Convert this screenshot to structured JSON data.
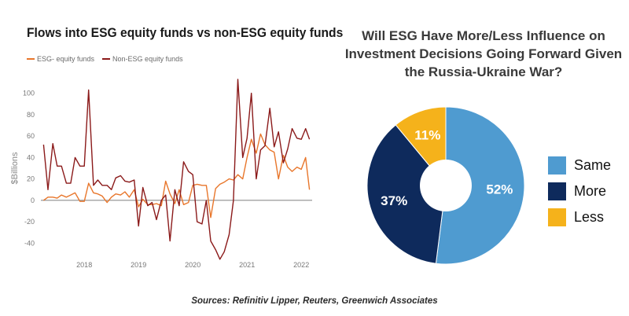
{
  "left": {
    "title": "Flows into ESG equity funds vs non-ESG equity funds",
    "legend": [
      {
        "label": "ESG- equity funds",
        "color": "#e8762b"
      },
      {
        "label": "Non-ESG equity funds",
        "color": "#8b1a1a"
      }
    ]
  },
  "right": {
    "title": "Will ESG Have More/Less Influence on Investment Decisions Going Forward Given the Russia-Ukraine War?"
  },
  "sources": "Sources: Refinitiv Lipper, Reuters, Greenwich Associates",
  "chart_data": [
    {
      "type": "line",
      "title": "Flows into ESG equity funds vs non-ESG equity funds",
      "ylabel": "$Billions",
      "ylim": [
        -50,
        110
      ],
      "yticks": [
        -40,
        -20,
        0,
        20,
        40,
        60,
        80,
        100
      ],
      "xticks": [
        "2018",
        "2019",
        "2020",
        "2021",
        "2022"
      ],
      "xlim": [
        2017.25,
        2022.25
      ],
      "grid": false,
      "legend_position": "top-left",
      "series": [
        {
          "name": "ESG- equity funds",
          "color": "#e8762b",
          "x": [
            2017.3,
            2017.38,
            2017.47,
            2017.55,
            2017.63,
            2017.72,
            2017.8,
            2017.88,
            2017.97,
            2018.05,
            2018.13,
            2018.22,
            2018.3,
            2018.38,
            2018.47,
            2018.55,
            2018.63,
            2018.72,
            2018.8,
            2018.88,
            2018.97,
            2019.05,
            2019.13,
            2019.22,
            2019.3,
            2019.38,
            2019.47,
            2019.55,
            2019.63,
            2019.72,
            2019.8,
            2019.88,
            2019.97,
            2020.05,
            2020.13,
            2020.22,
            2020.3,
            2020.38,
            2020.47,
            2020.55,
            2020.63,
            2020.72,
            2020.8,
            2020.88,
            2020.97,
            2021.05,
            2021.13,
            2021.22,
            2021.3,
            2021.38,
            2021.47,
            2021.55,
            2021.63,
            2021.72,
            2021.8,
            2021.88,
            2021.97,
            2022.05,
            2022.13,
            2022.2
          ],
          "y": [
            0,
            3,
            3,
            2,
            5,
            3,
            5,
            7,
            -1,
            -1,
            16,
            7,
            6,
            4,
            -2,
            3,
            6,
            5,
            8,
            3,
            10,
            -6,
            1,
            -4,
            -4,
            -3,
            -5,
            18,
            6,
            -3,
            10,
            -4,
            -2,
            14,
            15,
            14,
            14,
            -16,
            11,
            15,
            17,
            20,
            19,
            24,
            20,
            40,
            57,
            44,
            62,
            52,
            47,
            45,
            20,
            42,
            31,
            27,
            31,
            29,
            40,
            10
          ]
        },
        {
          "name": "Non-ESG equity funds",
          "color": "#8b1a1a",
          "x": [
            2017.3,
            2017.38,
            2017.47,
            2017.55,
            2017.63,
            2017.72,
            2017.8,
            2017.88,
            2017.97,
            2018.05,
            2018.13,
            2018.22,
            2018.3,
            2018.38,
            2018.47,
            2018.55,
            2018.63,
            2018.72,
            2018.8,
            2018.88,
            2018.97,
            2019.05,
            2019.13,
            2019.22,
            2019.3,
            2019.38,
            2019.47,
            2019.55,
            2019.63,
            2019.72,
            2019.8,
            2019.88,
            2019.97,
            2020.05,
            2020.13,
            2020.22,
            2020.3,
            2020.38,
            2020.47,
            2020.55,
            2020.63,
            2020.72,
            2020.8,
            2020.88,
            2020.97,
            2021.05,
            2021.13,
            2021.22,
            2021.3,
            2021.38,
            2021.47,
            2021.55,
            2021.63,
            2021.72,
            2021.8,
            2021.88,
            2021.97,
            2022.05,
            2022.13,
            2022.2
          ],
          "y": [
            52,
            10,
            53,
            32,
            32,
            16,
            16,
            40,
            32,
            32,
            103,
            14,
            19,
            14,
            14,
            10,
            21,
            23,
            18,
            17,
            19,
            -24,
            12,
            -5,
            -2,
            -18,
            0,
            5,
            -38,
            10,
            -5,
            36,
            27,
            24,
            -20,
            -22,
            0,
            -38,
            -46,
            -55,
            -48,
            -32,
            0,
            113,
            40,
            58,
            100,
            20,
            47,
            51,
            86,
            50,
            64,
            35,
            48,
            67,
            58,
            57,
            67,
            57
          ]
        }
      ]
    },
    {
      "type": "pie",
      "title": "Will ESG Have More/Less Influence on Investment Decisions Going Forward Given the Russia-Ukraine War?",
      "legend_position": "right",
      "slices": [
        {
          "label": "Same",
          "value": 52,
          "display": "52%",
          "color": "#4f9bd0"
        },
        {
          "label": "More",
          "value": 37,
          "display": "37%",
          "color": "#0e2a5c"
        },
        {
          "label": "Less",
          "value": 11,
          "display": "11%",
          "color": "#f5b21b"
        }
      ]
    }
  ]
}
